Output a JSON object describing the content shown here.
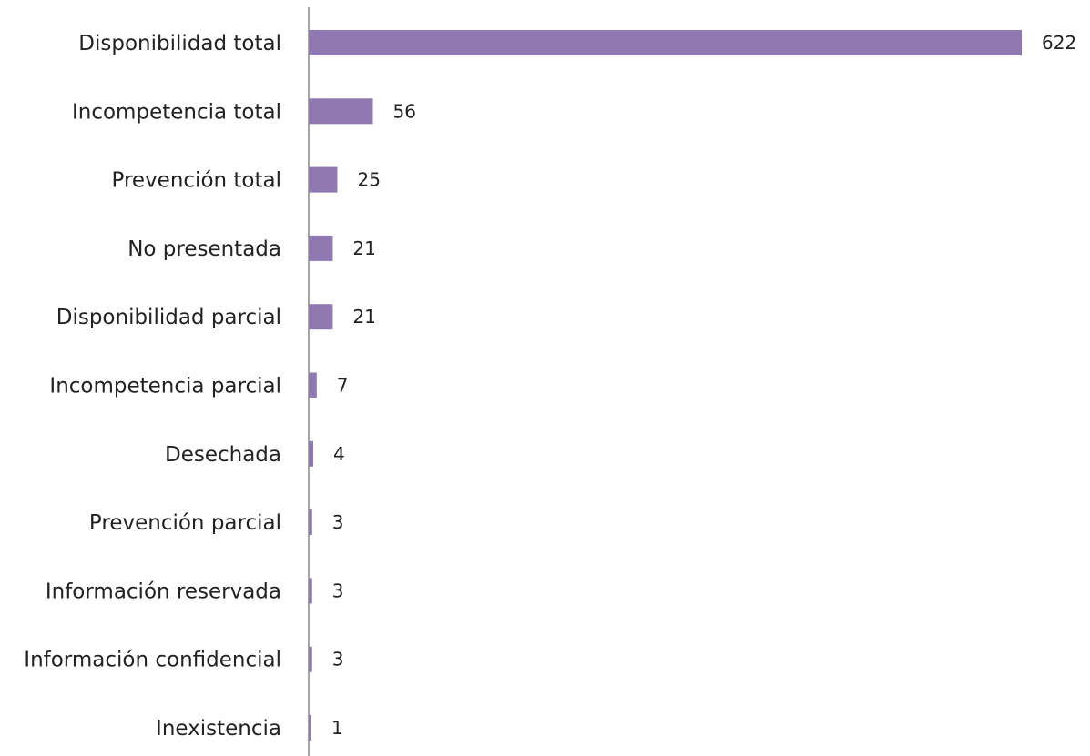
{
  "chart_data": {
    "type": "bar",
    "orientation": "horizontal",
    "categories": [
      "Disponibilidad total",
      "Incompetencia total",
      "Prevención total",
      "No presentada",
      "Disponibilidad parcial",
      "Incompetencia parcial",
      "Desechada",
      "Prevención parcial",
      "Información reservada",
      "Información confidencial",
      "Inexistencia"
    ],
    "values": [
      622,
      56,
      25,
      21,
      21,
      7,
      4,
      3,
      3,
      3,
      1
    ],
    "data_labels": [
      "622",
      "56",
      "25",
      "21",
      "21",
      "7",
      "4",
      "3",
      "3",
      "3",
      "1"
    ],
    "xlim": [
      0,
      622
    ],
    "grid": false,
    "legend": "none",
    "bar_color": "#8f79b0",
    "axis_color": "#888888"
  }
}
